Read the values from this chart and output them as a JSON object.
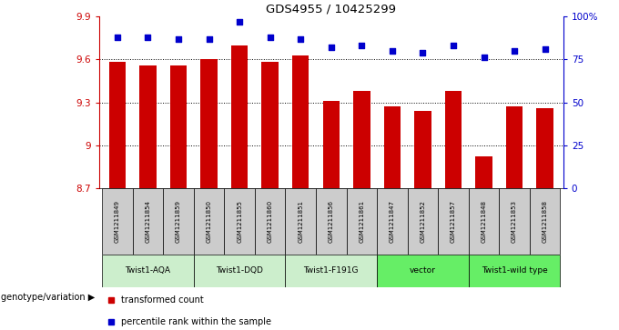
{
  "title": "GDS4955 / 10425299",
  "samples": [
    "GSM1211849",
    "GSM1211854",
    "GSM1211859",
    "GSM1211850",
    "GSM1211855",
    "GSM1211860",
    "GSM1211851",
    "GSM1211856",
    "GSM1211861",
    "GSM1211847",
    "GSM1211852",
    "GSM1211857",
    "GSM1211848",
    "GSM1211853",
    "GSM1211858"
  ],
  "bar_values": [
    9.58,
    9.56,
    9.56,
    9.6,
    9.7,
    9.58,
    9.63,
    9.31,
    9.38,
    9.27,
    9.24,
    9.38,
    8.92,
    9.27,
    9.26
  ],
  "percentile_values": [
    88,
    88,
    87,
    87,
    97,
    88,
    87,
    82,
    83,
    80,
    79,
    83,
    76,
    80,
    81
  ],
  "ylim_left": [
    8.7,
    9.9
  ],
  "ylim_right": [
    0,
    100
  ],
  "yticks_left": [
    8.7,
    9.0,
    9.3,
    9.6,
    9.9
  ],
  "ytick_labels_left": [
    "8.7",
    "9",
    "9.3",
    "9.6",
    "9.9"
  ],
  "yticks_right": [
    0,
    25,
    50,
    75,
    100
  ],
  "ytick_labels_right": [
    "0",
    "25",
    "50",
    "75",
    "100%"
  ],
  "bar_color": "#cc0000",
  "dot_color": "#0000cc",
  "background_color": "#ffffff",
  "groups": [
    {
      "label": "Twist1-AQA",
      "start": 0,
      "end": 3,
      "color": "#cceecc"
    },
    {
      "label": "Twist1-DQD",
      "start": 3,
      "end": 6,
      "color": "#cceecc"
    },
    {
      "label": "Twist1-F191G",
      "start": 6,
      "end": 9,
      "color": "#cceecc"
    },
    {
      "label": "vector",
      "start": 9,
      "end": 12,
      "color": "#66ee66"
    },
    {
      "label": "Twist1-wild type",
      "start": 12,
      "end": 15,
      "color": "#66ee66"
    }
  ],
  "sample_bg_color": "#cccccc",
  "genotype_label": "genotype/variation",
  "legend_items": [
    {
      "label": "transformed count",
      "color": "#cc0000"
    },
    {
      "label": "percentile rank within the sample",
      "color": "#0000cc"
    }
  ]
}
